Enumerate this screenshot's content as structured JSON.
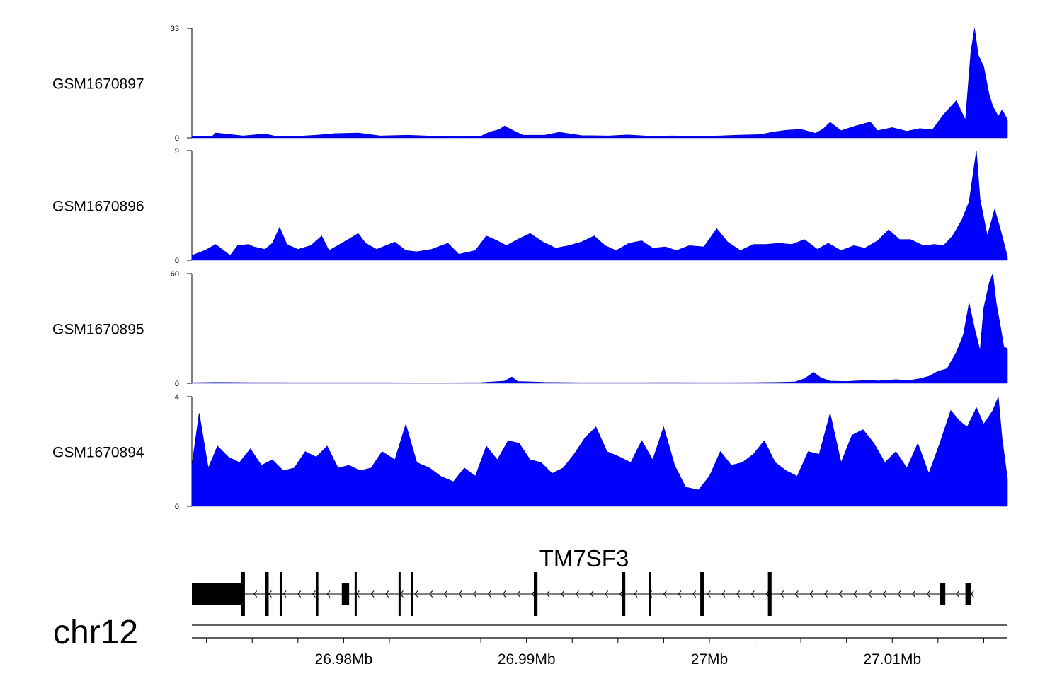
{
  "colors": {
    "signal": "#0000ff",
    "axis": "#000000",
    "gene": "#000000"
  },
  "chromosome": "chr12",
  "gene": {
    "name": "TM7SF3",
    "strand": "-"
  },
  "chart_data": {
    "type": "area",
    "xrange_bp": [
      26971700,
      27016300
    ],
    "x_axis": {
      "ticks_bp": [
        26972500,
        26975000,
        26977500,
        26980000,
        26982500,
        26985000,
        26987500,
        26990000,
        26992500,
        26995000,
        26997500,
        27000000,
        27002500,
        27005000,
        27007500,
        27010000,
        27012500,
        27015000
      ],
      "labeled_ticks": [
        {
          "bp": 26980000,
          "label": "26.98Mb"
        },
        {
          "bp": 26990000,
          "label": "26.99Mb"
        },
        {
          "bp": 27000000,
          "label": "27Mb"
        },
        {
          "bp": 27010000,
          "label": "27.01Mb"
        }
      ]
    },
    "series": [
      {
        "name": "GSM1670897",
        "ylim": [
          0,
          33
        ],
        "ytick_labels": [
          "0",
          "33"
        ],
        "points": [
          [
            26971700,
            0.5
          ],
          [
            26972800,
            0.4
          ],
          [
            26973000,
            1.5
          ],
          [
            26974500,
            0.6
          ],
          [
            26975700,
            1.2
          ],
          [
            26976200,
            0.6
          ],
          [
            26977500,
            0.5
          ],
          [
            26978500,
            0.8
          ],
          [
            26979500,
            1.3
          ],
          [
            26980800,
            1.5
          ],
          [
            26982000,
            0.6
          ],
          [
            26983500,
            0.8
          ],
          [
            26985000,
            0.5
          ],
          [
            26986500,
            0.4
          ],
          [
            26987500,
            0.5
          ],
          [
            26988000,
            1.8
          ],
          [
            26988500,
            2.5
          ],
          [
            26988800,
            3.6
          ],
          [
            26989200,
            2.4
          ],
          [
            26989800,
            0.8
          ],
          [
            26991000,
            0.8
          ],
          [
            26991800,
            1.7
          ],
          [
            26993000,
            0.7
          ],
          [
            26994500,
            0.6
          ],
          [
            26995500,
            0.9
          ],
          [
            26996800,
            0.5
          ],
          [
            26998000,
            0.6
          ],
          [
            26999500,
            0.5
          ],
          [
            27000500,
            0.6
          ],
          [
            27001500,
            0.8
          ],
          [
            27002800,
            1.0
          ],
          [
            27003500,
            1.8
          ],
          [
            27004200,
            2.3
          ],
          [
            27005000,
            2.6
          ],
          [
            27005800,
            1.4
          ],
          [
            27006200,
            2.6
          ],
          [
            27006600,
            4.7
          ],
          [
            27007200,
            2.2
          ],
          [
            27008000,
            3.6
          ],
          [
            27008800,
            4.8
          ],
          [
            27009200,
            2.2
          ],
          [
            27010000,
            3.1
          ],
          [
            27010800,
            2.0
          ],
          [
            27011500,
            2.8
          ],
          [
            27012200,
            2.5
          ],
          [
            27012800,
            7.0
          ],
          [
            27013500,
            11.2
          ],
          [
            27014000,
            5.4
          ],
          [
            27014300,
            26.0
          ],
          [
            27014500,
            33.0
          ],
          [
            27014700,
            25.0
          ],
          [
            27015000,
            21.5
          ],
          [
            27015300,
            13.0
          ],
          [
            27015500,
            9.5
          ],
          [
            27015800,
            6.5
          ],
          [
            27016000,
            8.5
          ],
          [
            27016300,
            5.5
          ]
        ]
      },
      {
        "name": "GSM1670896",
        "ylim": [
          0,
          9
        ],
        "ytick_labels": [
          "0",
          "9"
        ],
        "points": [
          [
            26971700,
            0.4
          ],
          [
            26972400,
            0.8
          ],
          [
            26973000,
            1.3
          ],
          [
            26973800,
            0.4
          ],
          [
            26974200,
            1.2
          ],
          [
            26974800,
            1.3
          ],
          [
            26975100,
            1.1
          ],
          [
            26975700,
            0.9
          ],
          [
            26976100,
            1.4
          ],
          [
            26976500,
            2.7
          ],
          [
            26976900,
            1.3
          ],
          [
            26977500,
            0.9
          ],
          [
            26978200,
            1.2
          ],
          [
            26978800,
            2.0
          ],
          [
            26979200,
            0.8
          ],
          [
            26979900,
            1.4
          ],
          [
            26980800,
            2.2
          ],
          [
            26981200,
            1.4
          ],
          [
            26981800,
            0.9
          ],
          [
            26982800,
            1.5
          ],
          [
            26983400,
            0.8
          ],
          [
            26984000,
            0.7
          ],
          [
            26984800,
            0.9
          ],
          [
            26985700,
            1.4
          ],
          [
            26986300,
            0.5
          ],
          [
            26987200,
            0.8
          ],
          [
            26987800,
            2.0
          ],
          [
            26988400,
            1.6
          ],
          [
            26988900,
            1.2
          ],
          [
            26989500,
            1.7
          ],
          [
            26990200,
            2.2
          ],
          [
            26990900,
            1.5
          ],
          [
            26991600,
            1.0
          ],
          [
            26992300,
            1.2
          ],
          [
            26993000,
            1.5
          ],
          [
            26993700,
            2.0
          ],
          [
            26994300,
            1.2
          ],
          [
            26994900,
            0.8
          ],
          [
            26995600,
            1.4
          ],
          [
            26996300,
            1.6
          ],
          [
            26996900,
            1.0
          ],
          [
            26997600,
            1.1
          ],
          [
            26998200,
            0.8
          ],
          [
            26998900,
            1.2
          ],
          [
            26999700,
            1.1
          ],
          [
            27000400,
            2.6
          ],
          [
            27001000,
            1.5
          ],
          [
            27001700,
            0.8
          ],
          [
            27002400,
            1.3
          ],
          [
            27003100,
            1.3
          ],
          [
            27003800,
            1.4
          ],
          [
            27004500,
            1.3
          ],
          [
            27005200,
            1.7
          ],
          [
            27005900,
            0.9
          ],
          [
            27006500,
            1.4
          ],
          [
            27007200,
            0.8
          ],
          [
            27007900,
            1.2
          ],
          [
            27008500,
            1.0
          ],
          [
            27009200,
            1.6
          ],
          [
            27009800,
            2.5
          ],
          [
            27010400,
            1.7
          ],
          [
            27011000,
            1.7
          ],
          [
            27011700,
            1.2
          ],
          [
            27012300,
            1.3
          ],
          [
            27012800,
            1.2
          ],
          [
            27013300,
            2.0
          ],
          [
            27013800,
            3.3
          ],
          [
            27014200,
            4.8
          ],
          [
            27014600,
            9.0
          ],
          [
            27014800,
            5.0
          ],
          [
            27015200,
            2.0
          ],
          [
            27015600,
            4.2
          ],
          [
            27015900,
            2.6
          ],
          [
            27016300,
            0.3
          ]
        ]
      },
      {
        "name": "GSM1670895",
        "ylim": [
          0,
          60
        ],
        "ytick_labels": [
          "0",
          "60"
        ],
        "points": [
          [
            26971700,
            0.3
          ],
          [
            26973000,
            0.5
          ],
          [
            26975000,
            0.4
          ],
          [
            26977500,
            0.3
          ],
          [
            26980000,
            0.3
          ],
          [
            26982500,
            0.3
          ],
          [
            26985000,
            0.2
          ],
          [
            26987500,
            0.4
          ],
          [
            26988800,
            1.2
          ],
          [
            26989200,
            3.5
          ],
          [
            26989500,
            1.0
          ],
          [
            26991000,
            0.5
          ],
          [
            26993000,
            0.3
          ],
          [
            26995000,
            0.3
          ],
          [
            26997500,
            0.4
          ],
          [
            27000000,
            0.3
          ],
          [
            27002500,
            0.4
          ],
          [
            27004000,
            0.6
          ],
          [
            27004700,
            0.8
          ],
          [
            27005200,
            2.5
          ],
          [
            27005700,
            6.0
          ],
          [
            27006100,
            3.0
          ],
          [
            27006600,
            1.2
          ],
          [
            27007500,
            1.0
          ],
          [
            27008500,
            1.5
          ],
          [
            27009300,
            1.3
          ],
          [
            27010200,
            2.0
          ],
          [
            27010900,
            1.5
          ],
          [
            27011500,
            2.5
          ],
          [
            27012000,
            3.8
          ],
          [
            27012500,
            6.5
          ],
          [
            27013000,
            8.0
          ],
          [
            27013500,
            17.0
          ],
          [
            27013900,
            27.0
          ],
          [
            27014200,
            44.0
          ],
          [
            27014500,
            30.0
          ],
          [
            27014800,
            18.0
          ],
          [
            27015000,
            41.0
          ],
          [
            27015300,
            55.0
          ],
          [
            27015500,
            60.0
          ],
          [
            27015700,
            43.0
          ],
          [
            27015900,
            32.0
          ],
          [
            27016100,
            20.0
          ],
          [
            27016300,
            19.0
          ]
        ]
      },
      {
        "name": "GSM1670894",
        "ylim": [
          0,
          4
        ],
        "ytick_labels": [
          "0",
          "4"
        ],
        "points": [
          [
            26971700,
            1.5
          ],
          [
            26972100,
            3.4
          ],
          [
            26972600,
            1.4
          ],
          [
            26973100,
            2.2
          ],
          [
            26973700,
            1.8
          ],
          [
            26974300,
            1.6
          ],
          [
            26974900,
            2.1
          ],
          [
            26975500,
            1.5
          ],
          [
            26976100,
            1.7
          ],
          [
            26976700,
            1.3
          ],
          [
            26977300,
            1.4
          ],
          [
            26977900,
            2.0
          ],
          [
            26978500,
            1.8
          ],
          [
            26979100,
            2.2
          ],
          [
            26979700,
            1.4
          ],
          [
            26980300,
            1.5
          ],
          [
            26980900,
            1.3
          ],
          [
            26981500,
            1.4
          ],
          [
            26982100,
            2.0
          ],
          [
            26982800,
            1.7
          ],
          [
            26983400,
            3.0
          ],
          [
            26984000,
            1.6
          ],
          [
            26984700,
            1.4
          ],
          [
            26985300,
            1.1
          ],
          [
            26986000,
            0.9
          ],
          [
            26986600,
            1.4
          ],
          [
            26987200,
            1.1
          ],
          [
            26987800,
            2.2
          ],
          [
            26988400,
            1.7
          ],
          [
            26989000,
            2.4
          ],
          [
            26989600,
            2.3
          ],
          [
            26990200,
            1.7
          ],
          [
            26990800,
            1.6
          ],
          [
            26991400,
            1.2
          ],
          [
            26992000,
            1.4
          ],
          [
            26992600,
            1.9
          ],
          [
            26993200,
            2.5
          ],
          [
            26993800,
            2.9
          ],
          [
            26994400,
            2.0
          ],
          [
            26995100,
            1.8
          ],
          [
            26995700,
            1.6
          ],
          [
            26996300,
            2.4
          ],
          [
            26996900,
            1.7
          ],
          [
            26997500,
            2.9
          ],
          [
            26998100,
            1.5
          ],
          [
            26998700,
            0.7
          ],
          [
            26999400,
            0.6
          ],
          [
            27000000,
            1.1
          ],
          [
            27000600,
            2.0
          ],
          [
            27001200,
            1.5
          ],
          [
            27001800,
            1.6
          ],
          [
            27002400,
            1.9
          ],
          [
            27003000,
            2.4
          ],
          [
            27003600,
            1.6
          ],
          [
            27004200,
            1.3
          ],
          [
            27004800,
            1.1
          ],
          [
            27005400,
            2.0
          ],
          [
            27006000,
            1.9
          ],
          [
            27006600,
            3.4
          ],
          [
            27007200,
            1.6
          ],
          [
            27007800,
            2.6
          ],
          [
            27008400,
            2.8
          ],
          [
            27009000,
            2.3
          ],
          [
            27009600,
            1.6
          ],
          [
            27010200,
            2.0
          ],
          [
            27010800,
            1.4
          ],
          [
            27011400,
            2.3
          ],
          [
            27012000,
            1.2
          ],
          [
            27012600,
            2.3
          ],
          [
            27013200,
            3.5
          ],
          [
            27013700,
            3.1
          ],
          [
            27014100,
            2.9
          ],
          [
            27014600,
            3.6
          ],
          [
            27015000,
            3.0
          ],
          [
            27015500,
            3.5
          ],
          [
            27015800,
            4.0
          ],
          [
            27016000,
            2.5
          ],
          [
            27016300,
            1.0
          ]
        ]
      }
    ]
  },
  "gene_model": {
    "intron_range_bp": [
      26971700,
      27014400
    ],
    "exons_bp": [
      [
        26971700,
        26974400
      ],
      [
        26974400,
        26974600
      ],
      [
        26975700,
        26975900
      ],
      [
        26976500,
        26976600
      ],
      [
        26978500,
        26978600
      ],
      [
        26979900,
        26980300
      ],
      [
        26980600,
        26980700
      ],
      [
        26983000,
        26983100
      ],
      [
        26983700,
        26983800
      ],
      [
        26990400,
        26990600
      ],
      [
        26995200,
        26995400
      ],
      [
        26996700,
        26996800
      ],
      [
        26999500,
        26999700
      ],
      [
        27003200,
        27003400
      ],
      [
        27012600,
        27012900
      ],
      [
        27014000,
        27014300
      ]
    ],
    "thick_exons": [
      0,
      5,
      14,
      15
    ]
  }
}
